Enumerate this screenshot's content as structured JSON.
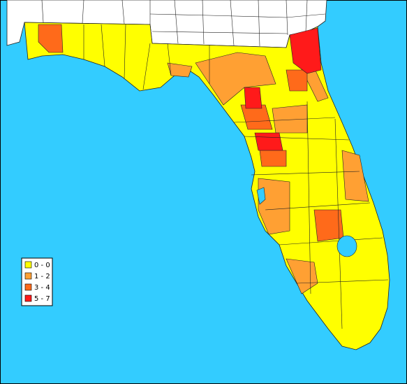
{
  "legend": {
    "items": [
      {
        "label": "0 - 0",
        "color": "#ffff00"
      },
      {
        "label": "1 - 2",
        "color": "#ffa033"
      },
      {
        "label": "3 - 4",
        "color": "#ff6a1a"
      },
      {
        "label": "5 - 7",
        "color": "#ff1a1a"
      }
    ]
  }
}
